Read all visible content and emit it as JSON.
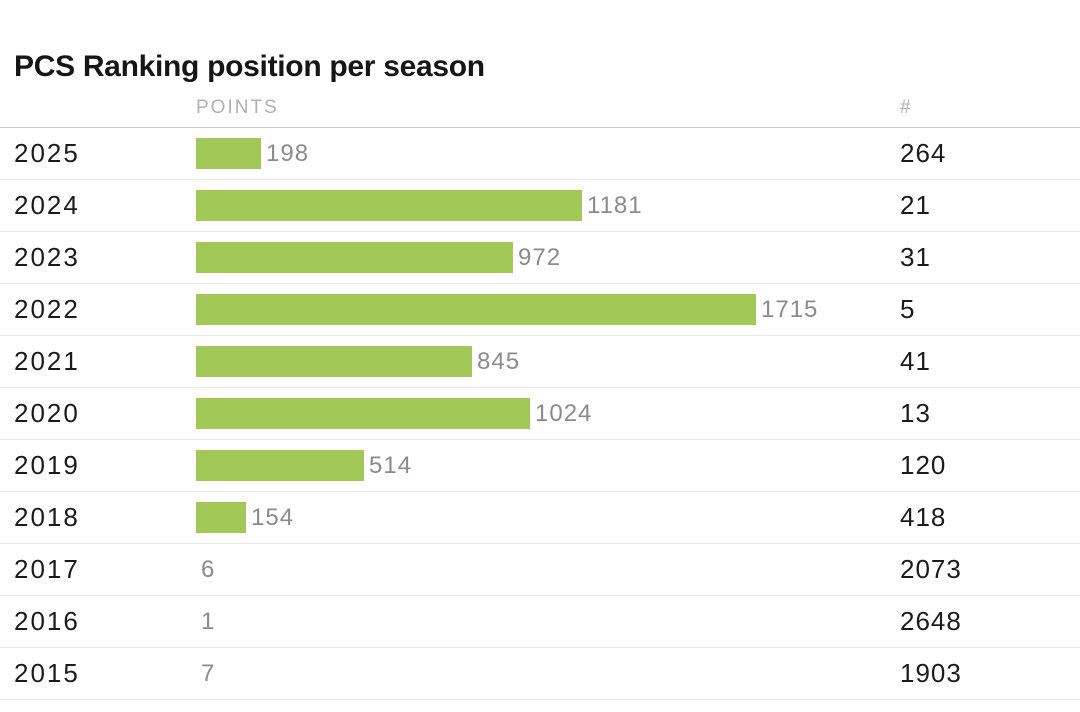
{
  "page": {
    "title": "PCS Ranking position per season"
  },
  "table": {
    "season_header": "",
    "points_header": "POINTS",
    "rank_header": "#"
  },
  "chart_data": {
    "type": "bar",
    "orientation": "horizontal",
    "title": "PCS Ranking position per season",
    "categories": [
      "2025",
      "2024",
      "2023",
      "2022",
      "2021",
      "2020",
      "2019",
      "2018",
      "2017",
      "2016",
      "2015"
    ],
    "series": [
      {
        "name": "POINTS",
        "values": [
          198,
          1181,
          972,
          1715,
          845,
          1024,
          514,
          154,
          6,
          1,
          7
        ]
      },
      {
        "name": "#",
        "values": [
          264,
          21,
          31,
          5,
          41,
          13,
          120,
          418,
          2073,
          2648,
          1903
        ]
      }
    ],
    "xmax": 1715,
    "bar_color": "#a2c957",
    "value_label_color": "#8b8b8b",
    "grid": "row-separators",
    "legend": "none"
  }
}
